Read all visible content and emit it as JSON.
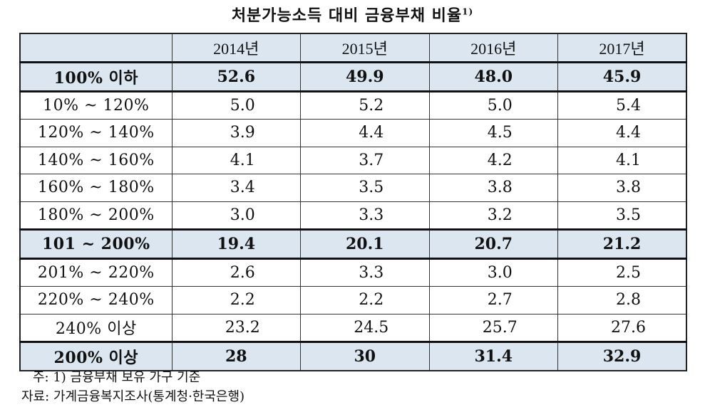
{
  "title": {
    "text": "처분가능소득 대비 금융부채 비율",
    "footnote_mark": "1)"
  },
  "table": {
    "headers": [
      "",
      "2014년",
      "2015년",
      "2016년",
      "2017년"
    ],
    "rows": [
      {
        "label": "100% 이하",
        "values": [
          "52.6",
          "49.9",
          "48.0",
          "45.9"
        ],
        "summary": true
      },
      {
        "label": "10% ~ 120%",
        "values": [
          "5.0",
          "5.2",
          "5.0",
          "5.4"
        ],
        "summary": false
      },
      {
        "label": "120% ~ 140%",
        "values": [
          "3.9",
          "4.4",
          "4.5",
          "4.4"
        ],
        "summary": false
      },
      {
        "label": "140% ~ 160%",
        "values": [
          "4.1",
          "3.7",
          "4.2",
          "4.1"
        ],
        "summary": false
      },
      {
        "label": "160% ~ 180%",
        "values": [
          "3.4",
          "3.5",
          "3.8",
          "3.8"
        ],
        "summary": false
      },
      {
        "label": "180% ~ 200%",
        "values": [
          "3.0",
          "3.3",
          "3.2",
          "3.5"
        ],
        "summary": false
      },
      {
        "label": "101 ~ 200%",
        "values": [
          "19.4",
          "20.1",
          "20.7",
          "21.2"
        ],
        "summary": true
      },
      {
        "label": "201% ~ 220%",
        "values": [
          "2.6",
          "3.3",
          "3.0",
          "2.5"
        ],
        "summary": false
      },
      {
        "label": "220% ~ 240%",
        "values": [
          "2.2",
          "2.2",
          "2.7",
          "2.8"
        ],
        "summary": false
      },
      {
        "label": "240% 이상",
        "values": [
          "23.2",
          "24.5",
          "25.7",
          "27.6"
        ],
        "summary": false
      },
      {
        "label": "200% 이상",
        "values": [
          "28",
          "30",
          "31.4",
          "32.9"
        ],
        "summary": true
      }
    ]
  },
  "notes": {
    "note1": "주: 1) 금융부채 보유 가구 기준",
    "note2": "자료: 가계금융복지조사(통계청·한국은행)"
  },
  "colors": {
    "header_bg": "#dbe6f1",
    "summary_bg": "#dbe6f1",
    "border": "#333333"
  }
}
